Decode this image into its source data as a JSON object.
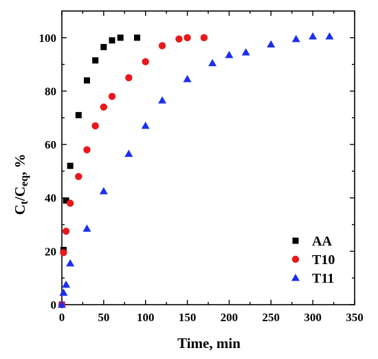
{
  "chart_data": {
    "type": "scatter",
    "title": "",
    "xlabel": "Time, min",
    "ylabel_main": "C",
    "ylabel_sub1": "t",
    "ylabel_slash": "/C",
    "ylabel_sub2": "eq",
    "ylabel_unit": ", %",
    "xlim": [
      0,
      350
    ],
    "ylim": [
      0,
      110
    ],
    "xticks": [
      0,
      50,
      100,
      150,
      200,
      250,
      300,
      350
    ],
    "yticks": [
      0,
      20,
      40,
      60,
      80,
      100
    ],
    "minor_xticks": [
      25,
      75,
      125,
      175,
      225,
      275,
      325
    ],
    "minor_yticks": [
      10,
      30,
      50,
      70,
      90
    ],
    "grid": false,
    "legend_position": "bottom-right",
    "series": [
      {
        "name": "AA",
        "marker": "square",
        "color": "#000000",
        "x": [
          0,
          2,
          5,
          10,
          20,
          30,
          40,
          50,
          60,
          70,
          90
        ],
        "y": [
          0,
          20.5,
          39,
          52,
          71,
          84,
          91.5,
          96.5,
          99,
          100,
          100
        ]
      },
      {
        "name": "T10",
        "marker": "circle",
        "color": "#e8181c",
        "x": [
          0,
          2,
          5,
          10,
          20,
          30,
          40,
          50,
          60,
          80,
          100,
          120,
          140,
          150,
          170
        ],
        "y": [
          0,
          19.5,
          27.5,
          38,
          48,
          58,
          67,
          74,
          78,
          85,
          91,
          97,
          99.5,
          100,
          100
        ]
      },
      {
        "name": "T11",
        "marker": "triangle",
        "color": "#1c2ff0",
        "x": [
          0,
          2,
          5,
          10,
          30,
          50,
          80,
          100,
          120,
          150,
          180,
          200,
          220,
          250,
          280,
          300,
          320
        ],
        "y": [
          0,
          4.5,
          7.5,
          15.5,
          28.5,
          42.5,
          56.5,
          67,
          76.5,
          84.5,
          90.5,
          93.5,
          94.5,
          97.5,
          99.5,
          100.5,
          100.5
        ]
      }
    ]
  }
}
